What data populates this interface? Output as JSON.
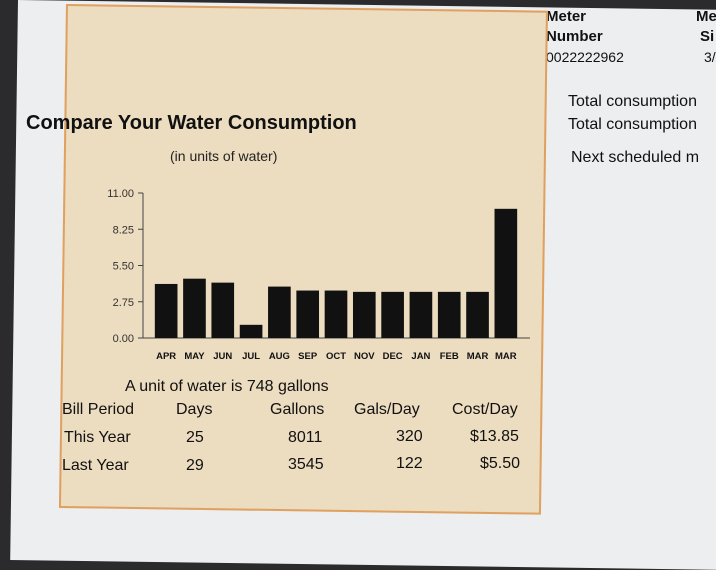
{
  "meter": {
    "header1": "Meter",
    "header1b": "Number",
    "number": "0022222962",
    "header2": "Me",
    "header2b": "Si",
    "value2": "3/"
  },
  "right_text": [
    "Total consumption",
    "Total consumption",
    "Next scheduled m"
  ],
  "chart_data": {
    "type": "bar",
    "title": "Compare Your Water Consumption",
    "subtitle": "(in units of water)",
    "categories": [
      "APR",
      "MAY",
      "JUN",
      "JUL",
      "AUG",
      "SEP",
      "OCT",
      "NOV",
      "DEC",
      "JAN",
      "FEB",
      "MAR",
      "MAR"
    ],
    "values": [
      4.1,
      4.5,
      4.2,
      1.0,
      3.9,
      3.6,
      3.6,
      3.5,
      3.5,
      3.5,
      3.5,
      3.5,
      9.8
    ],
    "yticks": [
      "11.00",
      "8.25",
      "5.50",
      "2.75",
      "0.00"
    ],
    "ylim": [
      0,
      11
    ],
    "xlabel": "",
    "ylabel": "",
    "grid": false,
    "bar_color": "#111111"
  },
  "note": "A unit of water is 748 gallons",
  "table": {
    "headers": [
      "Bill Period",
      "Days",
      "Gallons",
      "Gals/Day",
      "Cost/Day"
    ],
    "rows": [
      [
        "This Year",
        "25",
        "8011",
        "320",
        "$13.85"
      ],
      [
        "Last Year",
        "29",
        "3545",
        "122",
        "$5.50"
      ]
    ]
  }
}
